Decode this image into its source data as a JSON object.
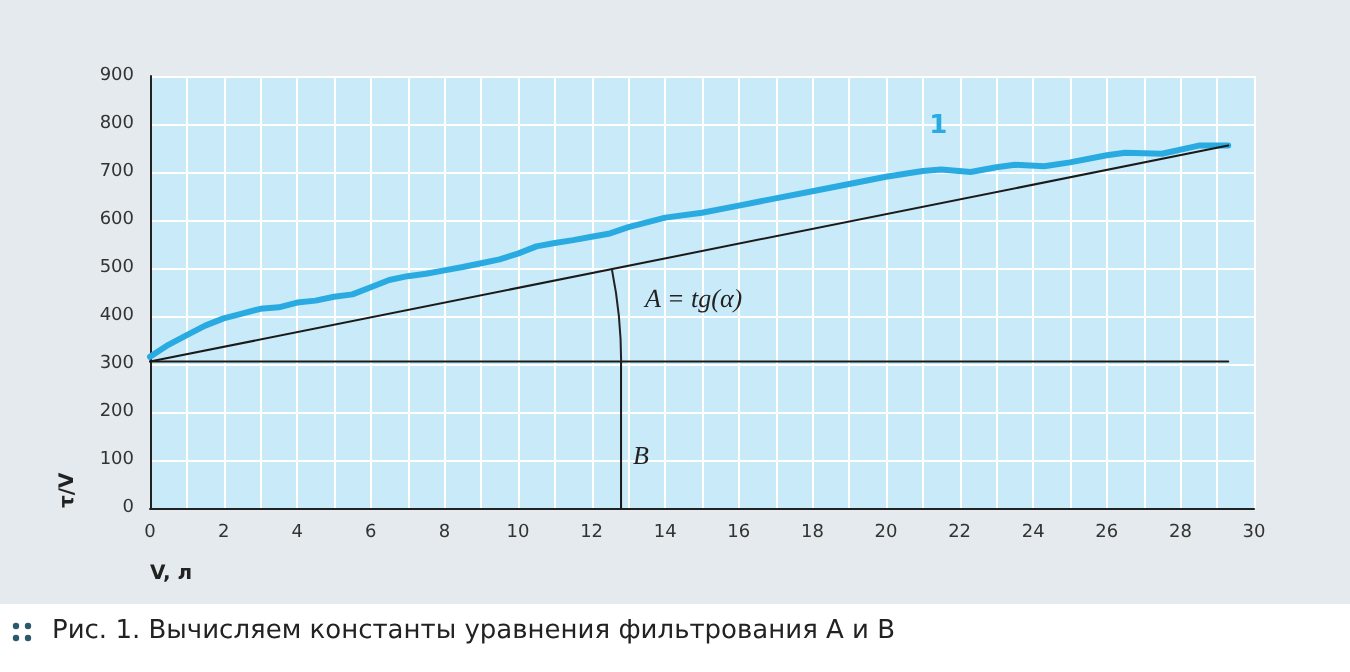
{
  "chart_data": {
    "type": "line",
    "xlabel": "V, л",
    "ylabel": "τ/V",
    "xlim": [
      0,
      30
    ],
    "xticks": [
      0,
      2,
      4,
      6,
      8,
      10,
      12,
      14,
      16,
      18,
      20,
      22,
      24,
      26,
      28,
      30
    ],
    "ylim": [
      0,
      900
    ],
    "yticks": [
      0,
      100,
      200,
      300,
      400,
      500,
      600,
      700,
      800,
      900
    ],
    "grid": true,
    "marker": "none",
    "line_style": "solid",
    "series": [
      {
        "color": "#29abe2",
        "x": [
          0,
          0.5,
          1,
          1.5,
          2,
          2.5,
          3,
          3.5,
          4,
          4.5,
          5,
          5.5,
          6,
          6.5,
          7,
          7.5,
          8,
          8.5,
          9,
          9.5,
          10,
          10.5,
          11,
          11.5,
          12,
          12.5,
          13,
          13.5,
          14,
          15,
          16,
          17,
          18,
          19,
          20,
          21,
          21.5,
          22.3,
          23,
          23.5,
          24.3,
          25,
          26,
          26.5,
          27.5,
          28.5,
          29.3
        ],
        "values": [
          315,
          340,
          360,
          380,
          395,
          405,
          415,
          418,
          428,
          432,
          440,
          445,
          460,
          475,
          483,
          488,
          495,
          502,
          510,
          518,
          530,
          545,
          552,
          558,
          565,
          572,
          585,
          595,
          605,
          615,
          630,
          645,
          660,
          675,
          690,
          702,
          705,
          700,
          710,
          715,
          712,
          720,
          735,
          740,
          738,
          755,
          755
        ]
      },
      {
        "color": "#1a1a1a",
        "x": [
          0,
          29.3
        ],
        "values": [
          305,
          755
        ]
      },
      {
        "color": "#1a1a1a",
        "x": [
          0,
          29.3
        ],
        "values": [
          305,
          305
        ]
      },
      {
        "color": "#1a1a1a",
        "x": [
          12.8,
          12.8
        ],
        "values": [
          0,
          305
        ]
      }
    ],
    "annotations": [
      "1",
      "A = tg(α)",
      "B",
      "Рис. 1. Вычисляем константы уравнения фильтрования A и B"
    ]
  }
}
